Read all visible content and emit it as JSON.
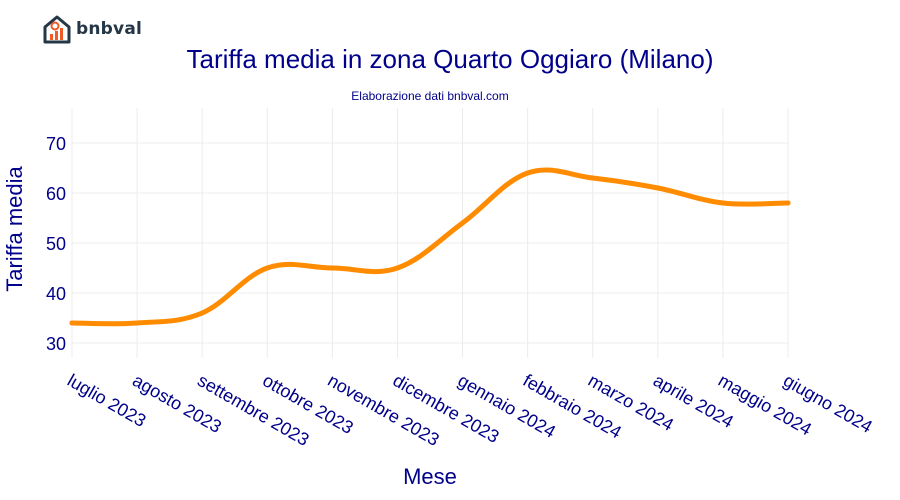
{
  "brand": {
    "name": "bnbval",
    "logo_icon": "house-chart-icon",
    "colors": {
      "roof": "#253746",
      "bars": "#f05a28"
    }
  },
  "chart_data": {
    "type": "line",
    "title": "Tariffa media in zona Quarto Oggiaro (Milano)",
    "subtitle": "Elaborazione dati bnbval.com",
    "xlabel": "Mese",
    "ylabel": "Tariffa media",
    "categories": [
      "luglio 2023",
      "agosto 2023",
      "settembre 2023",
      "ottobre 2023",
      "novembre 2023",
      "dicembre 2023",
      "gennaio 2024",
      "febbraio 2024",
      "marzo 2024",
      "aprile 2024",
      "maggio 2024",
      "giugno 2024"
    ],
    "series": [
      {
        "name": "Tariffa media",
        "color": "#ff8c00",
        "values": [
          34,
          34,
          36,
          45,
          45,
          45,
          54,
          64,
          63,
          61,
          58,
          58
        ]
      }
    ],
    "yticks": [
      30,
      40,
      50,
      60,
      70
    ],
    "ylim": [
      27,
      77
    ],
    "grid": true,
    "legend": "none"
  }
}
